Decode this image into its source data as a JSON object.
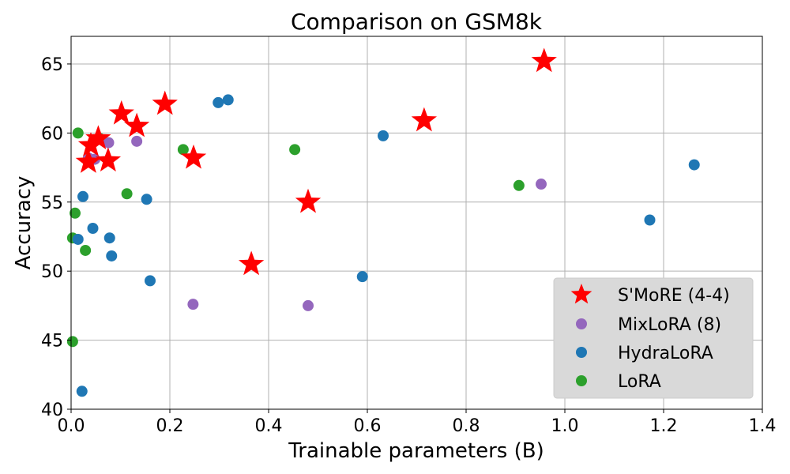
{
  "chart_data": {
    "type": "scatter",
    "title": "Comparison on GSM8k",
    "xlabel": "Trainable parameters (B)",
    "ylabel": "Accuracy",
    "xlim": [
      0,
      1.4
    ],
    "ylim": [
      40,
      67
    ],
    "xticks": [
      0,
      0.2,
      0.4,
      0.6,
      0.8,
      1.0,
      1.2,
      1.4
    ],
    "xtick_labels": [
      "0.0",
      "0.2",
      "0.4",
      "0.6",
      "0.8",
      "1.0",
      "1.2",
      "1.4"
    ],
    "yticks": [
      40,
      45,
      50,
      55,
      60,
      65
    ],
    "ytick_labels": [
      "40",
      "45",
      "50",
      "55",
      "60",
      "65"
    ],
    "grid": true,
    "legend_position": "lower-right",
    "series": [
      {
        "name": "S'MoRE (4-4)",
        "label": "S'MoRE (4-4)",
        "marker": "star",
        "color": "#ff0000",
        "points": [
          [
            0.958,
            65.2
          ],
          [
            0.19,
            62.1
          ],
          [
            0.102,
            61.4
          ],
          [
            0.133,
            60.5
          ],
          [
            0.715,
            60.9
          ],
          [
            0.055,
            59.6
          ],
          [
            0.04,
            59.1
          ],
          [
            0.035,
            57.9
          ],
          [
            0.075,
            58.0
          ],
          [
            0.248,
            58.2
          ],
          [
            0.48,
            55.0
          ],
          [
            0.365,
            50.5
          ]
        ]
      },
      {
        "name": "MixLoRA (8)",
        "label": "MixLoRA (8)",
        "marker": "circle",
        "color": "#9467bd",
        "points": [
          [
            0.076,
            59.3
          ],
          [
            0.133,
            59.4
          ],
          [
            0.035,
            58.2
          ],
          [
            0.048,
            58.1
          ],
          [
            0.952,
            56.3
          ],
          [
            0.247,
            47.6
          ],
          [
            0.48,
            47.5
          ]
        ]
      },
      {
        "name": "HydraLoRA",
        "label": "HydraLoRA",
        "marker": "circle",
        "color": "#1f77b4",
        "points": [
          [
            0.298,
            62.2
          ],
          [
            0.318,
            62.4
          ],
          [
            0.632,
            59.8
          ],
          [
            1.262,
            57.7
          ],
          [
            0.024,
            55.4
          ],
          [
            0.153,
            55.2
          ],
          [
            1.172,
            53.7
          ],
          [
            0.044,
            53.1
          ],
          [
            0.078,
            52.4
          ],
          [
            0.014,
            52.3
          ],
          [
            0.082,
            51.1
          ],
          [
            0.16,
            49.3
          ],
          [
            0.59,
            49.6
          ],
          [
            0.022,
            41.3
          ]
        ]
      },
      {
        "name": "LoRA",
        "label": "LoRA",
        "marker": "circle",
        "color": "#2ca02c",
        "points": [
          [
            0.014,
            60.0
          ],
          [
            0.058,
            59.6
          ],
          [
            0.227,
            58.8
          ],
          [
            0.453,
            58.8
          ],
          [
            0.907,
            56.2
          ],
          [
            0.113,
            55.6
          ],
          [
            0.008,
            54.2
          ],
          [
            0.003,
            52.4
          ],
          [
            0.029,
            51.5
          ],
          [
            0.003,
            44.9
          ]
        ]
      }
    ]
  }
}
